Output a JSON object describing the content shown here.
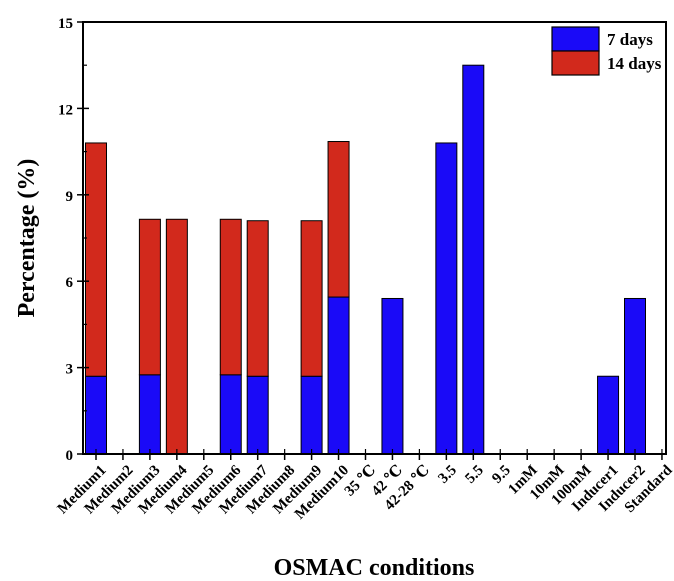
{
  "chart_data": {
    "type": "bar",
    "stacked": true,
    "xlabel": "OSMAC conditions",
    "ylabel": "Percentage (%)",
    "ylim": [
      0,
      15
    ],
    "yticks": [
      0,
      3,
      6,
      9,
      12,
      15
    ],
    "categories": [
      "Medium1",
      "Medium2",
      "Medium3",
      "Medium4",
      "Medium5",
      "Medium6",
      "Medium7",
      "Medium8",
      "Medium9",
      "Medium10",
      "35 ℃",
      "42 ℃",
      "42-28 ℃",
      "3.5",
      "5.5",
      "9.5",
      "1mM",
      "10mM",
      "100mM",
      "Inducer1",
      "Inducer2",
      "Standard"
    ],
    "series": [
      {
        "name": "7 days",
        "color": "#1a0af7",
        "values": [
          2.7,
          0,
          2.75,
          0,
          0,
          2.75,
          2.7,
          0,
          2.7,
          5.45,
          0,
          5.4,
          0,
          10.8,
          13.5,
          0,
          0,
          0,
          0,
          2.7,
          5.4,
          0
        ]
      },
      {
        "name": "14 days",
        "color": "#d2291c",
        "values": [
          8.1,
          0,
          5.4,
          8.15,
          0,
          5.4,
          5.4,
          0,
          5.4,
          5.4,
          0,
          0,
          0,
          0,
          0,
          0,
          0,
          0,
          0,
          0,
          0,
          0
        ]
      }
    ],
    "legend_position": "top-right",
    "grid": false
  }
}
